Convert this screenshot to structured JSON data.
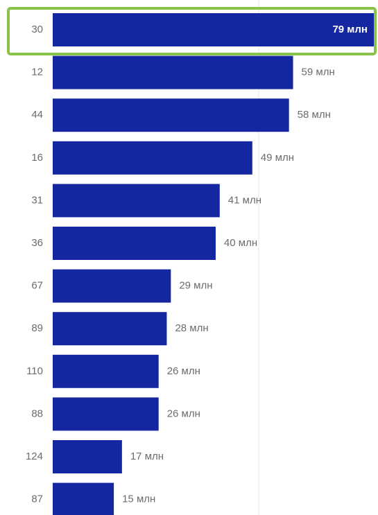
{
  "chart_data": {
    "type": "bar",
    "orientation": "horizontal",
    "categories": [
      "30",
      "12",
      "44",
      "16",
      "31",
      "36",
      "67",
      "89",
      "110",
      "88",
      "124",
      "87"
    ],
    "values": [
      79,
      59,
      58,
      49,
      41,
      40,
      29,
      28,
      26,
      26,
      17,
      15
    ],
    "value_labels": [
      "79 млн",
      "59 млн",
      "58 млн",
      "49 млн",
      "41 млн",
      "40 млн",
      "29 млн",
      "28 млн",
      "26 млн",
      "26 млн",
      "17 млн",
      "15 млн"
    ],
    "xlim": [
      0,
      79
    ],
    "grid": true,
    "legend": "none",
    "selected_index": 0
  },
  "colors": {
    "bar": "#1426a0",
    "highlight": "#8bc34a",
    "label": "#6b6b6b",
    "gridline": "#e8e8e8"
  }
}
